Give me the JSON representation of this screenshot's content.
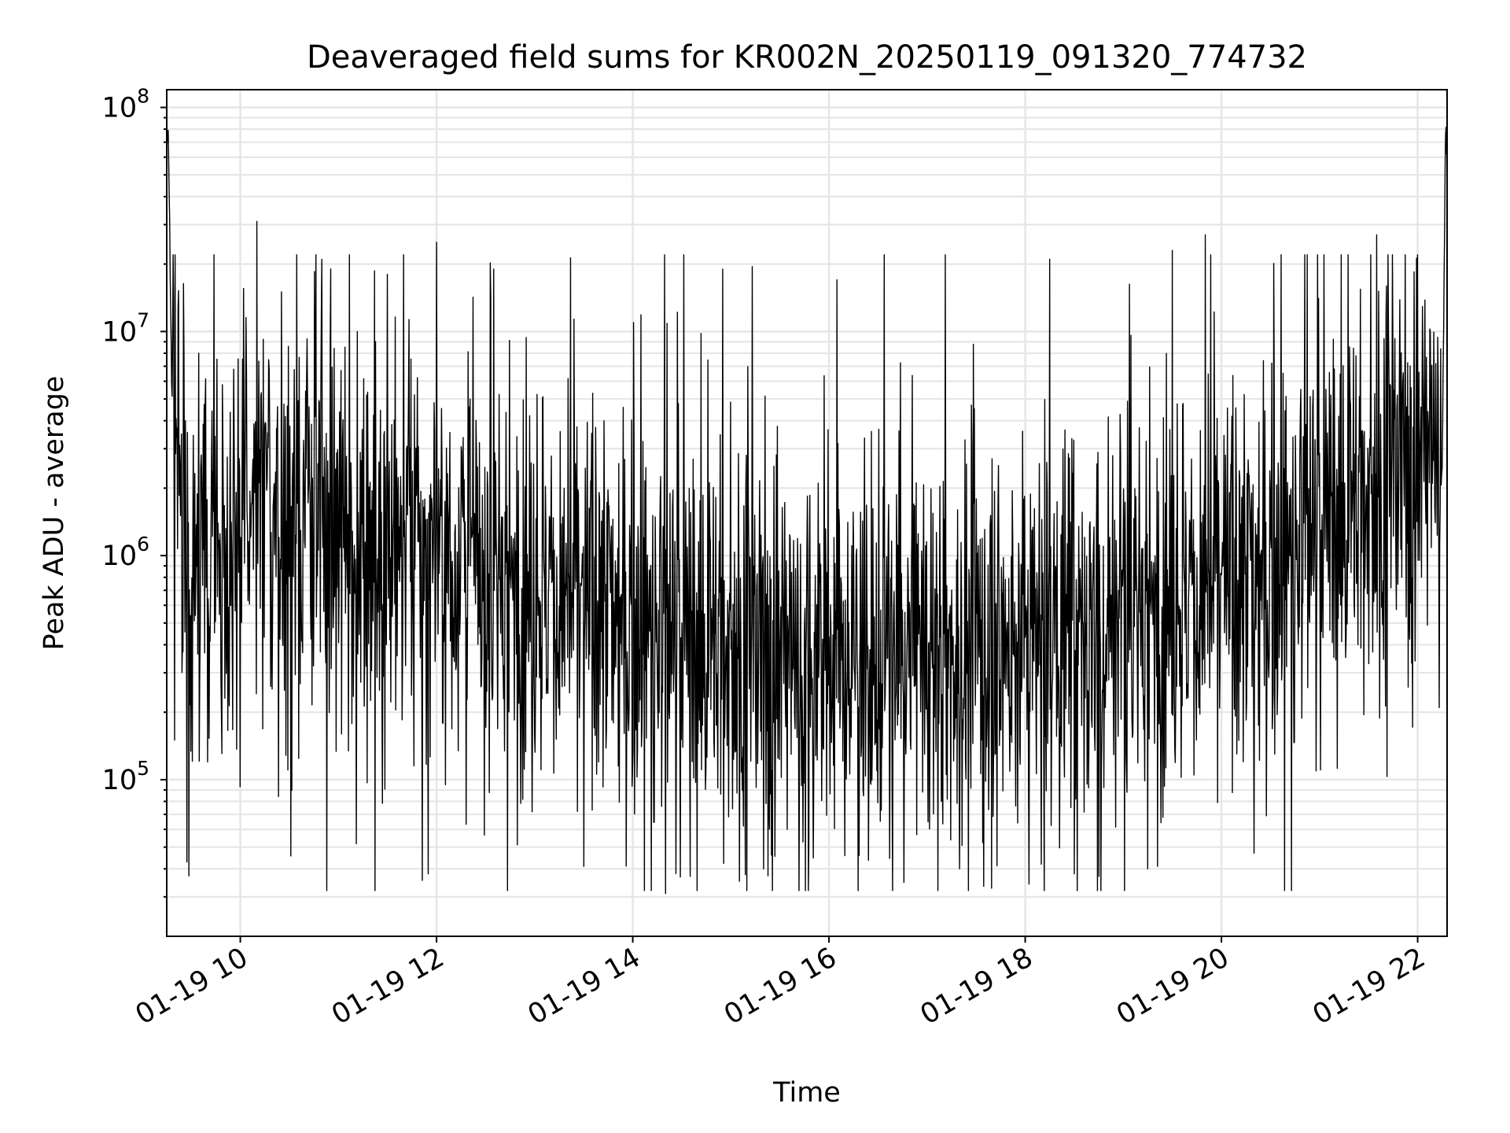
{
  "chart_data": {
    "type": "line",
    "title": "Deaveraged field sums for KR002N_20250119_091320_774732",
    "xlabel": "Time",
    "ylabel": "Peak ADU - average",
    "yscale": "log",
    "grid": true,
    "legend": "none",
    "line_color": "#000000",
    "xlim": [
      "01-19 09:15",
      "01-19 22:18"
    ],
    "ylim": [
      20000,
      120000000
    ],
    "x_ticks": [
      {
        "value": 10,
        "label": "01-19 10"
      },
      {
        "value": 12,
        "label": "01-19 12"
      },
      {
        "value": 14,
        "label": "01-19 14"
      },
      {
        "value": 16,
        "label": "01-19 16"
      },
      {
        "value": 18,
        "label": "01-19 18"
      },
      {
        "value": 20,
        "label": "01-19 20"
      },
      {
        "value": 22,
        "label": "01-19 22"
      }
    ],
    "y_ticks": [
      {
        "value": 100000,
        "base": "10",
        "exp": "5"
      },
      {
        "value": 1000000,
        "base": "10",
        "exp": "6"
      },
      {
        "value": 10000000,
        "base": "10",
        "exp": "7"
      },
      {
        "value": 100000000,
        "base": "10",
        "exp": "8"
      }
    ],
    "series": [
      {
        "x": [
          "01-19 09:15",
          "01-19 09:16",
          "01-19 09:18",
          "01-19 09:22",
          "01-19 09:30",
          "01-19 09:40",
          "01-19 09:50",
          "01-19 10:00",
          "01-19 10:20",
          "01-19 10:40",
          "01-19 11:00",
          "01-19 11:20",
          "01-19 11:40",
          "01-19 12:00",
          "01-19 12:20",
          "01-19 12:40",
          "01-19 13:00",
          "01-19 13:20",
          "01-19 13:40",
          "01-19 14:00",
          "01-19 14:20",
          "01-19 14:40",
          "01-19 15:00",
          "01-19 15:20",
          "01-19 15:40",
          "01-19 16:00",
          "01-19 16:20",
          "01-19 16:40",
          "01-19 17:00",
          "01-19 17:20",
          "01-19 17:40",
          "01-19 18:00",
          "01-19 18:20",
          "01-19 18:40",
          "01-19 19:00",
          "01-19 19:20",
          "01-19 19:40",
          "01-19 20:00",
          "01-19 20:20",
          "01-19 20:40",
          "01-19 21:00",
          "01-19 21:20",
          "01-19 21:40",
          "01-19 22:00",
          "01-19 22:10",
          "01-19 22:15",
          "01-19 22:17",
          "01-19 22:18"
        ],
        "y": [
          70000000,
          80000000,
          6000000,
          1500000,
          1300000,
          1200000,
          1100000,
          1500000,
          1600000,
          1500000,
          1300000,
          1200000,
          1100000,
          1000000,
          900000,
          800000,
          700000,
          650000,
          600000,
          500000,
          450000,
          420000,
          400000,
          380000,
          350000,
          330000,
          330000,
          340000,
          350000,
          360000,
          380000,
          420000,
          450000,
          500000,
          550000,
          600000,
          650000,
          700000,
          800000,
          1000000,
          1300000,
          1700000,
          2200000,
          2800000,
          3000000,
          2500000,
          75000000,
          70000000
        ],
        "extremes_high": [
          [
            "01-19 10:10",
            31000000
          ],
          [
            "01-19 10:50",
            21000000
          ],
          [
            "01-19 11:30",
            18000000
          ],
          [
            "01-19 12:00",
            25000000
          ],
          [
            "01-19 12:35",
            19000000
          ],
          [
            "01-19 13:30",
            27000000
          ],
          [
            "01-19 14:55",
            19000000
          ],
          [
            "01-19 16:05",
            17000000
          ],
          [
            "01-19 18:15",
            21000000
          ],
          [
            "01-19 19:30",
            23000000
          ],
          [
            "01-19 19:50",
            27000000
          ],
          [
            "01-19 21:35",
            27000000
          ]
        ],
        "extremes_low": [
          [
            "01-19 09:40",
            120000
          ],
          [
            "01-19 10:00",
            93000
          ],
          [
            "01-19 11:55",
            38000
          ],
          [
            "01-19 13:30",
            41000
          ],
          [
            "01-19 14:20",
            31000
          ],
          [
            "01-19 14:35",
            37000
          ],
          [
            "01-19 15:20",
            40000
          ],
          [
            "01-19 17:20",
            40000
          ],
          [
            "01-19 18:30",
            38000
          ],
          [
            "01-19 18:45",
            37000
          ],
          [
            "01-19 19:15",
            40000
          ],
          [
            "01-19 20:20",
            47000
          ]
        ]
      }
    ]
  }
}
